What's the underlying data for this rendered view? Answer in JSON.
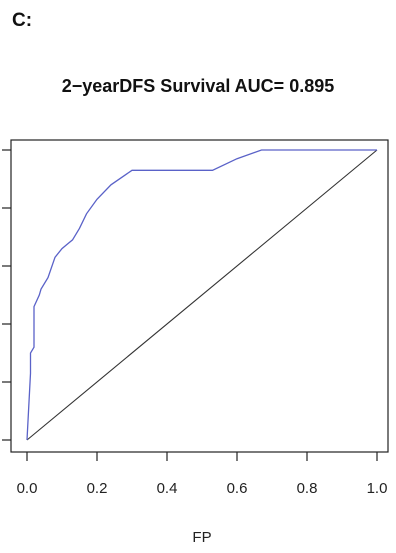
{
  "panel_label": "C:",
  "chart_data": {
    "type": "line",
    "title": "2−yearDFS Survival AUC= 0.895",
    "xlabel": "FP",
    "ylabel": "",
    "xlim": [
      0,
      1
    ],
    "ylim": [
      0,
      1
    ],
    "xticks": [
      "0.0",
      "0.2",
      "0.4",
      "0.6",
      "0.8",
      "1.0"
    ],
    "series": [
      {
        "color": "#5a62c8",
        "x": [
          0,
          0.01,
          0.01,
          0.02,
          0.02,
          0.035,
          0.04,
          0.06,
          0.08,
          0.1,
          0.12,
          0.13,
          0.15,
          0.17,
          0.2,
          0.24,
          0.3,
          0.4,
          0.53,
          0.6,
          0.67,
          0.8,
          1.0
        ],
        "y": [
          0,
          0.23,
          0.3,
          0.32,
          0.46,
          0.5,
          0.52,
          0.56,
          0.63,
          0.66,
          0.68,
          0.69,
          0.73,
          0.78,
          0.83,
          0.88,
          0.93,
          0.93,
          0.93,
          0.97,
          1.0,
          1.0,
          1.0
        ]
      },
      {
        "color": "#333333",
        "x": [
          0,
          1
        ],
        "y": [
          0,
          1
        ]
      }
    ]
  }
}
